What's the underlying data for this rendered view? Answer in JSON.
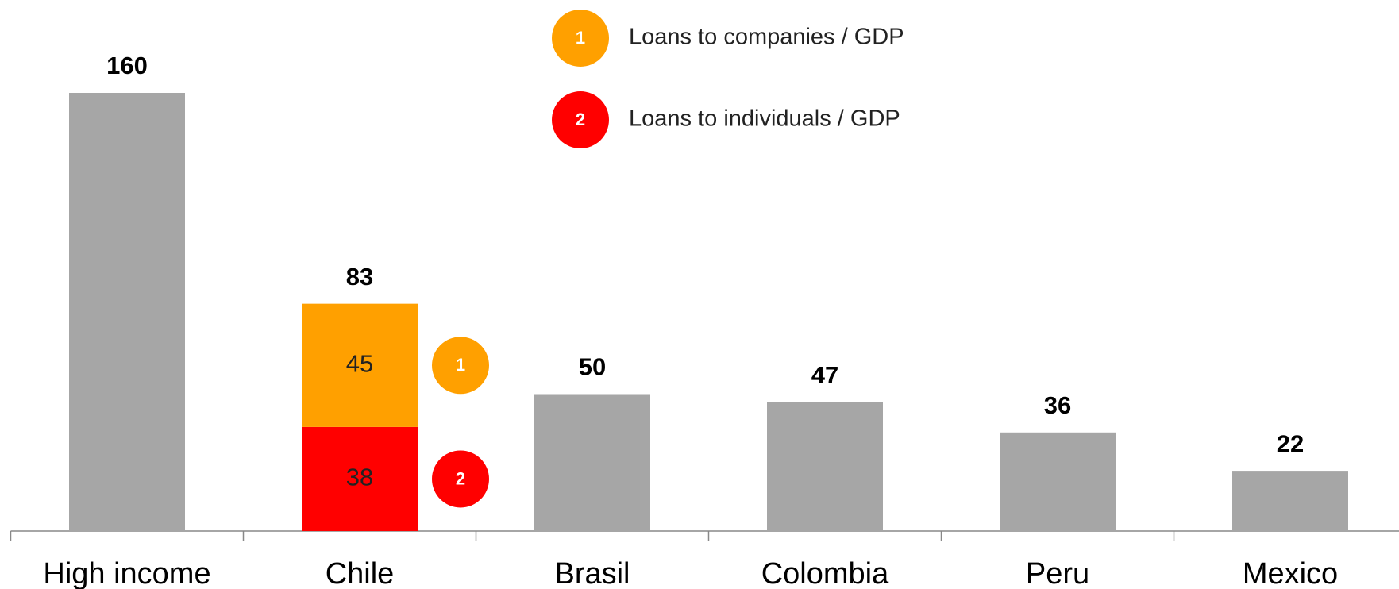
{
  "chart_data": {
    "type": "bar",
    "categories": [
      "High income",
      "Chile",
      "Brasil",
      "Colombia",
      "Peru",
      "Mexico"
    ],
    "totals": [
      160,
      83,
      50,
      47,
      36,
      22
    ],
    "color": "#a6a6a6",
    "series": [
      {
        "name": "Loans to companies / GDP",
        "badge": "1",
        "color": "#ffa000",
        "values": [
          null,
          45,
          null,
          null,
          null,
          null
        ]
      },
      {
        "name": "Loans to individuals / GDP",
        "badge": "2",
        "color": "#ff0000",
        "values": [
          null,
          38,
          null,
          null,
          null,
          null
        ]
      }
    ]
  }
}
